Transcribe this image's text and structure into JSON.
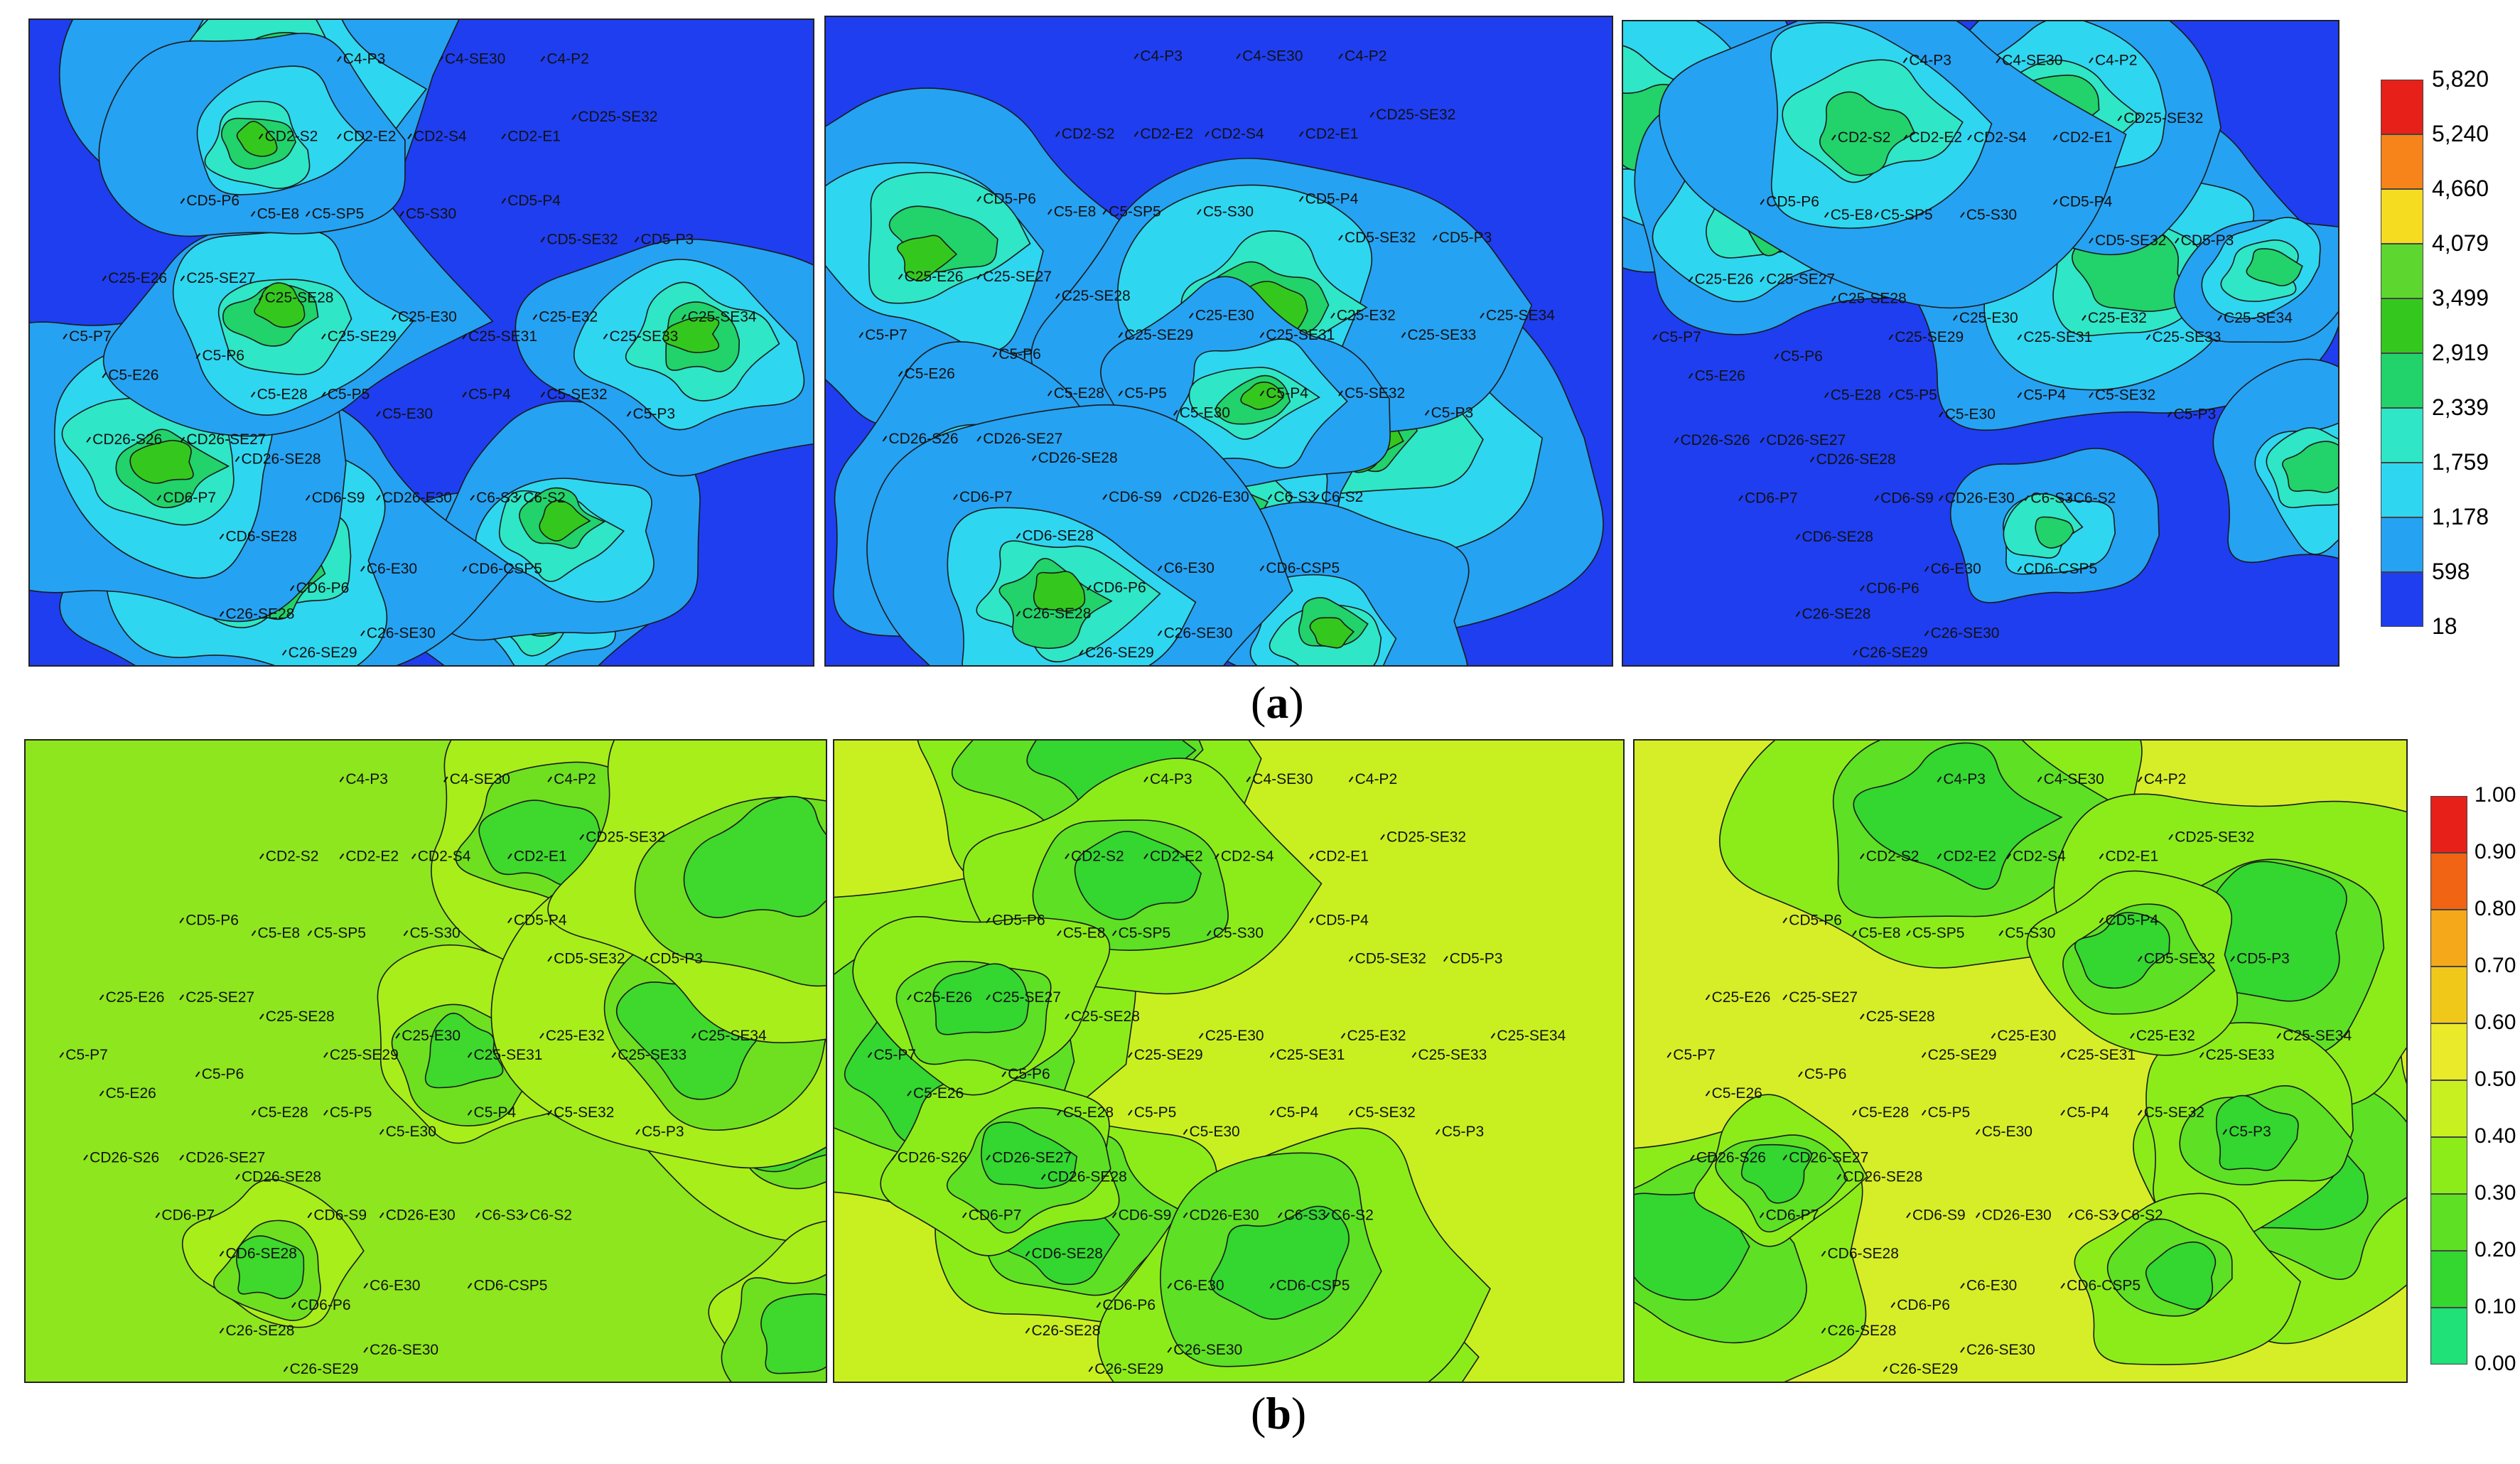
{
  "figure": {
    "caption_a": "a",
    "caption_b": "b"
  },
  "legend_a": {
    "ticks": [
      "5,820",
      "5,240",
      "4,660",
      "4,079",
      "3,499",
      "2,919",
      "2,339",
      "1,759",
      "1,178",
      "598",
      "18"
    ],
    "colors": [
      "#e8201a",
      "#f7841a",
      "#f5dc20",
      "#5ed630",
      "#34c81e",
      "#22d26a",
      "#2fe6c6",
      "#2fd6f0",
      "#26a2f2",
      "#1f3ef0"
    ]
  },
  "legend_b": {
    "ticks": [
      "1.00",
      "0.90",
      "0.80",
      "0.70",
      "0.60",
      "0.50",
      "0.40",
      "0.30",
      "0.20",
      "0.10",
      "0.00"
    ],
    "colors": [
      "#e8201a",
      "#f06414",
      "#f5a81a",
      "#f0c81a",
      "#eaea2a",
      "#c8f020",
      "#8cec1a",
      "#5ee024",
      "#34d630",
      "#20e078"
    ]
  },
  "wells": [
    "C4-P3",
    "C4-SE30",
    "C4-P2",
    "CD2-S2",
    "CD2-E2",
    "CD2-S4",
    "CD2-E1",
    "CD25-SE32",
    "CD5-P6",
    "C5-E8",
    "C5-SP5",
    "C5-S30",
    "CD5-P4",
    "CD5-SE32",
    "CD5-P3",
    "C25-E26",
    "C25-SE27",
    "C25-SE28",
    "C25-E30",
    "C25-E32",
    "C25-SE34",
    "C5-P7",
    "C5-P6",
    "C25-SE29",
    "C25-SE31",
    "C25-SE33",
    "C5-E26",
    "C5-E28",
    "C5-P5",
    "C5-P4",
    "C5-SE32",
    "C5-E30",
    "C5-P3",
    "CD26-S26",
    "CD26-SE27",
    "CD26-SE28",
    "CD6-P7",
    "CD6-S9",
    "CD26-E30",
    "C6-S3",
    "C6-S2",
    "CD6-SE28",
    "C6-E30",
    "CD6-CSP5",
    "CD6-P6",
    "C26-SE28",
    "C26-SE30",
    "C26-SE29"
  ]
}
